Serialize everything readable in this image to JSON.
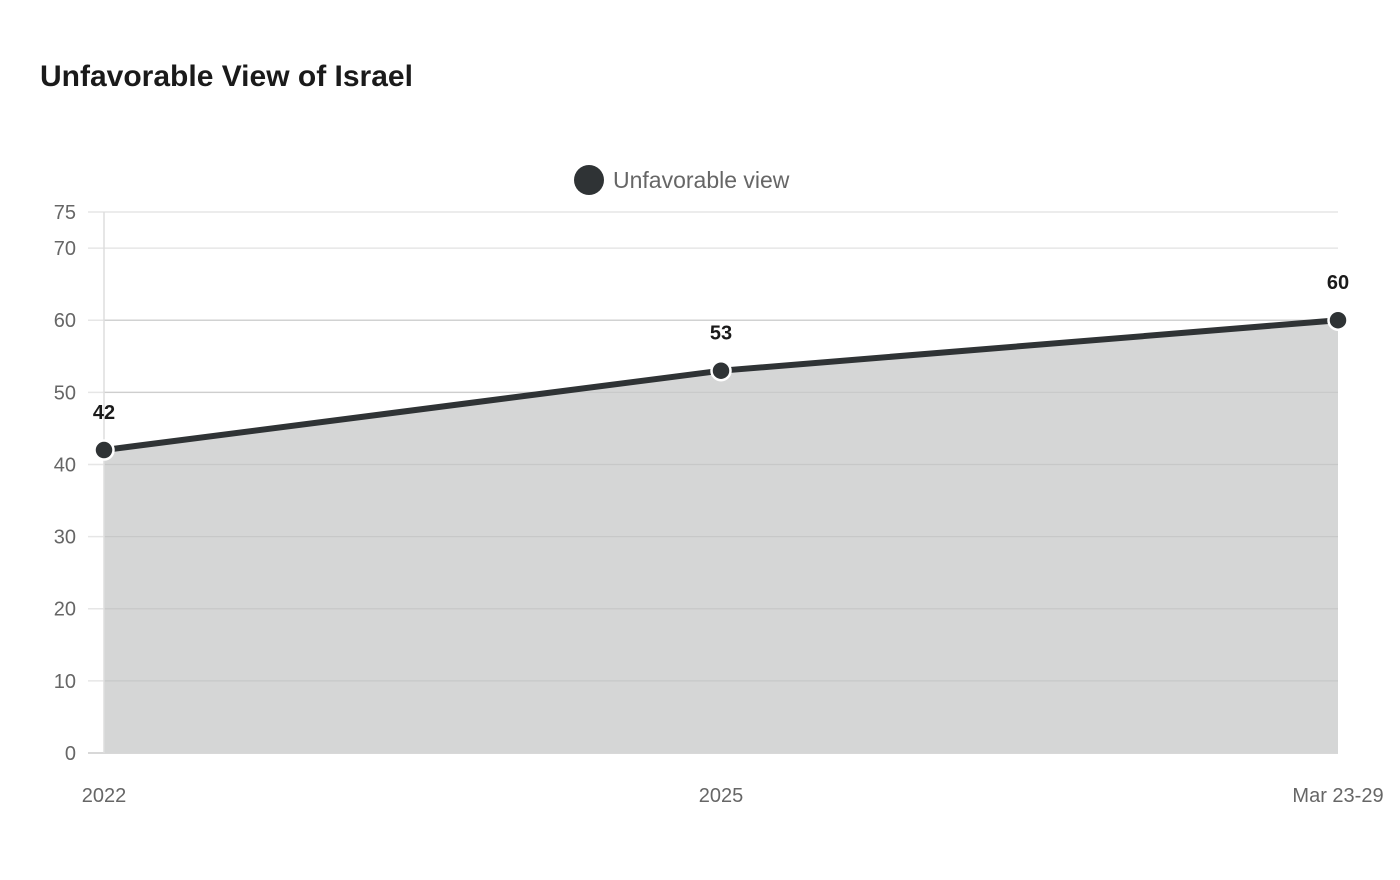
{
  "chart_data": {
    "type": "area",
    "title": "Unfavorable View of Israel",
    "categories": [
      "2022",
      "2025",
      "Mar 23-29"
    ],
    "series": [
      {
        "name": "Unfavorable view",
        "values": [
          42,
          53,
          60
        ],
        "line_color": "#2f3335",
        "fill_color": "#d5d6d6",
        "marker_color": "#2f3335"
      }
    ],
    "ylim": [
      0,
      75
    ],
    "yticks": [
      0,
      10,
      20,
      30,
      40,
      50,
      60,
      70,
      75
    ],
    "grid": true,
    "legend_position": "top-center",
    "data_labels": true
  }
}
